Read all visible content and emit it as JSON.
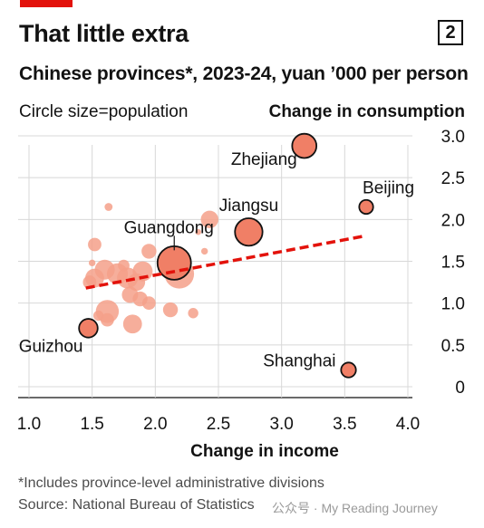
{
  "header": {
    "title": "That little extra",
    "badge": "2",
    "subtitle": "Chinese provinces*, 2023-24, yuan ’000 per person",
    "size_note": "Circle size=population"
  },
  "footer": {
    "footnote": "*Includes province-level administrative divisions",
    "source": "Source: National Bureau of Statistics",
    "watermark": "公众号 · My Reading Journey"
  },
  "colors": {
    "bubble": "#f4a08a",
    "bubble_dark": "#f07f66",
    "trend": "#e3120b",
    "grid": "#d8d8d8",
    "accent": "#e3120b"
  },
  "chart_data": {
    "type": "scatter",
    "title": "That little extra",
    "subtitle": "Chinese provinces*, 2023-24, yuan ’000 per person",
    "xlabel": "Change in income",
    "ylabel": "Change in consumption",
    "xlim": [
      1.0,
      4.0
    ],
    "ylim": [
      0,
      3.0
    ],
    "x_ticks": [
      "1.0",
      "1.5",
      "2.0",
      "2.5",
      "3.0",
      "3.5",
      "4.0"
    ],
    "y_ticks": [
      "0",
      "0.5",
      "1.0",
      "1.5",
      "2.0",
      "2.5",
      "3.0"
    ],
    "size_encoding": "population",
    "grid": true,
    "trendline": {
      "x": [
        1.45,
        3.65
      ],
      "y": [
        1.18,
        1.8
      ],
      "style": "dashed"
    },
    "points": [
      {
        "label": "Zhejiang",
        "x": 3.18,
        "y": 2.88,
        "size": 6.6,
        "outlined": true
      },
      {
        "label": "Beijing",
        "x": 3.67,
        "y": 2.15,
        "size": 2.2,
        "outlined": true
      },
      {
        "label": "Jiangsu",
        "x": 2.74,
        "y": 1.85,
        "size": 8.5,
        "outlined": true
      },
      {
        "label": "Guangdong",
        "x": 2.15,
        "y": 1.48,
        "size": 12.7,
        "outlined": true
      },
      {
        "label": "Guizhou",
        "x": 1.47,
        "y": 0.7,
        "size": 3.9,
        "outlined": true
      },
      {
        "label": "Shanghai",
        "x": 3.53,
        "y": 0.2,
        "size": 2.5,
        "outlined": true
      },
      {
        "label": "",
        "x": 2.19,
        "y": 1.35,
        "size": 9.8,
        "outlined": false
      },
      {
        "label": "",
        "x": 1.63,
        "y": 2.15,
        "size": 0.7,
        "outlined": false
      },
      {
        "label": "",
        "x": 2.43,
        "y": 2.0,
        "size": 3.5,
        "outlined": false
      },
      {
        "label": "",
        "x": 2.39,
        "y": 1.62,
        "size": 0.5,
        "outlined": false
      },
      {
        "label": "",
        "x": 2.34,
        "y": 1.85,
        "size": 0.4,
        "outlined": false
      },
      {
        "label": "",
        "x": 1.95,
        "y": 1.62,
        "size": 2.5,
        "outlined": false
      },
      {
        "label": "",
        "x": 1.52,
        "y": 1.7,
        "size": 2.0,
        "outlined": false
      },
      {
        "label": "",
        "x": 1.5,
        "y": 1.48,
        "size": 0.5,
        "outlined": false
      },
      {
        "label": "",
        "x": 1.48,
        "y": 1.25,
        "size": 2.0,
        "outlined": false
      },
      {
        "label": "",
        "x": 1.52,
        "y": 1.3,
        "size": 4.0,
        "outlined": false
      },
      {
        "label": "",
        "x": 1.6,
        "y": 1.4,
        "size": 4.5,
        "outlined": false
      },
      {
        "label": "",
        "x": 1.7,
        "y": 1.35,
        "size": 5.0,
        "outlined": false
      },
      {
        "label": "",
        "x": 1.78,
        "y": 1.3,
        "size": 5.0,
        "outlined": false
      },
      {
        "label": "",
        "x": 1.85,
        "y": 1.25,
        "size": 3.5,
        "outlined": false
      },
      {
        "label": "",
        "x": 1.9,
        "y": 1.38,
        "size": 4.5,
        "outlined": false
      },
      {
        "label": "",
        "x": 1.8,
        "y": 1.1,
        "size": 3.0,
        "outlined": false
      },
      {
        "label": "",
        "x": 1.88,
        "y": 1.05,
        "size": 2.5,
        "outlined": false
      },
      {
        "label": "",
        "x": 1.95,
        "y": 1.0,
        "size": 2.0,
        "outlined": false
      },
      {
        "label": "",
        "x": 1.62,
        "y": 0.9,
        "size": 6.0,
        "outlined": false
      },
      {
        "label": "",
        "x": 1.55,
        "y": 0.85,
        "size": 1.2,
        "outlined": false
      },
      {
        "label": "",
        "x": 1.62,
        "y": 0.8,
        "size": 2.0,
        "outlined": false
      },
      {
        "label": "",
        "x": 1.82,
        "y": 0.75,
        "size": 4.0,
        "outlined": false
      },
      {
        "label": "",
        "x": 2.12,
        "y": 0.92,
        "size": 2.5,
        "outlined": false
      },
      {
        "label": "",
        "x": 2.3,
        "y": 0.88,
        "size": 1.2,
        "outlined": false
      },
      {
        "label": "",
        "x": 1.75,
        "y": 1.45,
        "size": 1.5,
        "outlined": false
      }
    ]
  }
}
